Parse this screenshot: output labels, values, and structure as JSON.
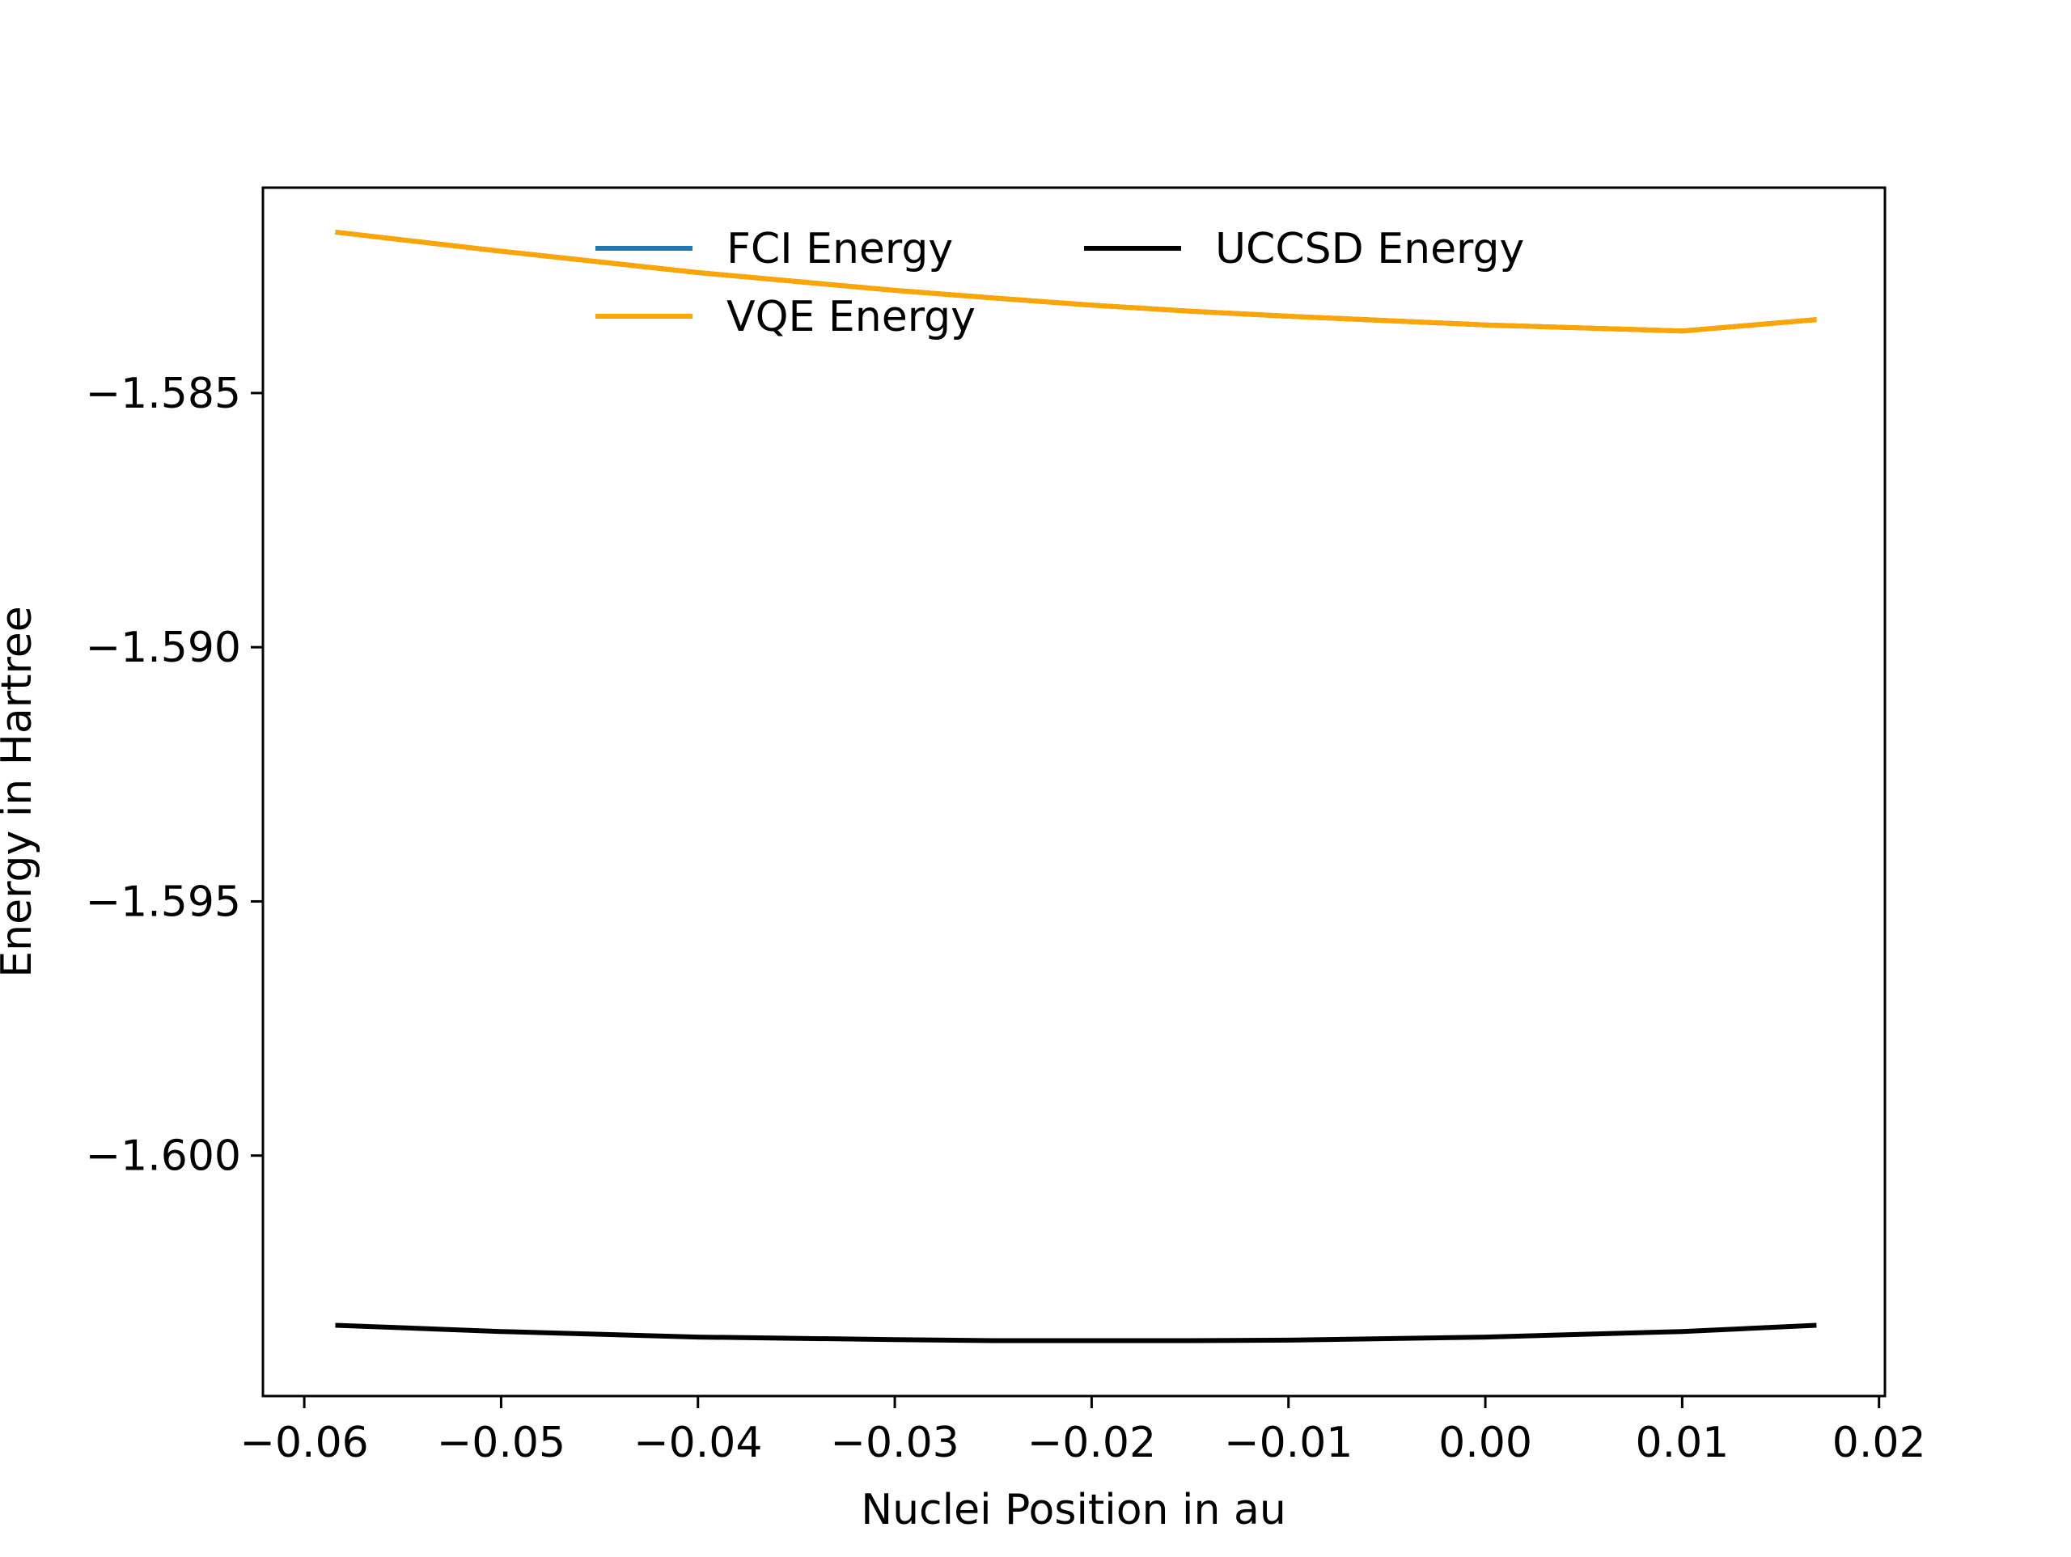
{
  "chart_data": {
    "type": "line",
    "title": "",
    "xlabel": "Nuclei Position in au",
    "ylabel": "Energy in Hartree",
    "xlim": [
      -0.0621,
      0.0203
    ],
    "ylim": [
      -1.60473,
      -1.58096
    ],
    "x_ticks": [
      -0.06,
      -0.05,
      -0.04,
      -0.03,
      -0.02,
      -0.01,
      0.0,
      0.01,
      0.02
    ],
    "x_tick_labels": [
      "−0.06",
      "−0.05",
      "−0.04",
      "−0.03",
      "−0.02",
      "−0.01",
      "0.00",
      "0.01",
      "0.02"
    ],
    "y_ticks": [
      -1.585,
      -1.59,
      -1.595,
      -1.6
    ],
    "y_tick_labels": [
      "−1.585",
      "−1.590",
      "−1.595",
      "−1.600"
    ],
    "grid": false,
    "legend": {
      "placement": "top-center",
      "columns": 2
    },
    "x": [
      -0.0583,
      -0.05,
      -0.04,
      -0.03,
      -0.025,
      -0.02,
      -0.015,
      -0.01,
      0.0,
      0.01,
      0.0167
    ],
    "series": [
      {
        "name": "FCI Energy",
        "color": "#1f77b4",
        "values": [
          -1.58184,
          -1.58221,
          -1.58263,
          -1.58298,
          -1.58313,
          -1.58327,
          -1.58339,
          -1.58349,
          -1.58366,
          -1.58378,
          -1.58356
        ]
      },
      {
        "name": "VQE Energy",
        "color": "#ffa500",
        "values": [
          -1.58184,
          -1.58221,
          -1.58263,
          -1.58298,
          -1.58313,
          -1.58327,
          -1.58339,
          -1.58349,
          -1.58366,
          -1.58378,
          -1.58356
        ]
      },
      {
        "name": "UCCSD Energy",
        "color": "#000000",
        "values": [
          -1.60334,
          -1.60346,
          -1.60357,
          -1.60362,
          -1.60364,
          -1.60364,
          -1.60364,
          -1.60363,
          -1.60357,
          -1.60346,
          -1.60334
        ]
      }
    ]
  }
}
